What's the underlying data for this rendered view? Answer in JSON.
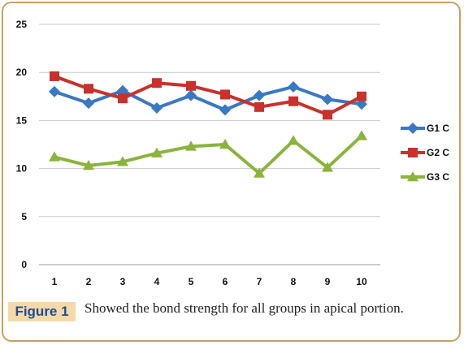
{
  "figure": {
    "label": "Figure 1",
    "caption": "Showed the bond strength for all groups in apical portion."
  },
  "chart_data": {
    "type": "line",
    "x": [
      1,
      2,
      3,
      4,
      5,
      6,
      7,
      8,
      9,
      10
    ],
    "ylim": [
      0,
      25
    ],
    "yticks": [
      0,
      5,
      10,
      15,
      20,
      25
    ],
    "grid": true,
    "legend": "right",
    "series": [
      {
        "name": "G1 C",
        "color": "#3a78c2",
        "marker": "diamond",
        "values": [
          18.0,
          16.8,
          18.1,
          16.3,
          17.6,
          16.1,
          17.6,
          18.5,
          17.2,
          16.7
        ]
      },
      {
        "name": "G2 C",
        "color": "#c8312c",
        "marker": "square",
        "values": [
          19.6,
          18.3,
          17.3,
          18.9,
          18.6,
          17.7,
          16.4,
          17.0,
          15.6,
          17.5
        ]
      },
      {
        "name": "G3 C",
        "color": "#8ab43c",
        "marker": "triangle",
        "values": [
          11.2,
          10.3,
          10.7,
          11.6,
          12.3,
          12.5,
          9.5,
          12.9,
          10.1,
          13.4
        ]
      }
    ]
  }
}
